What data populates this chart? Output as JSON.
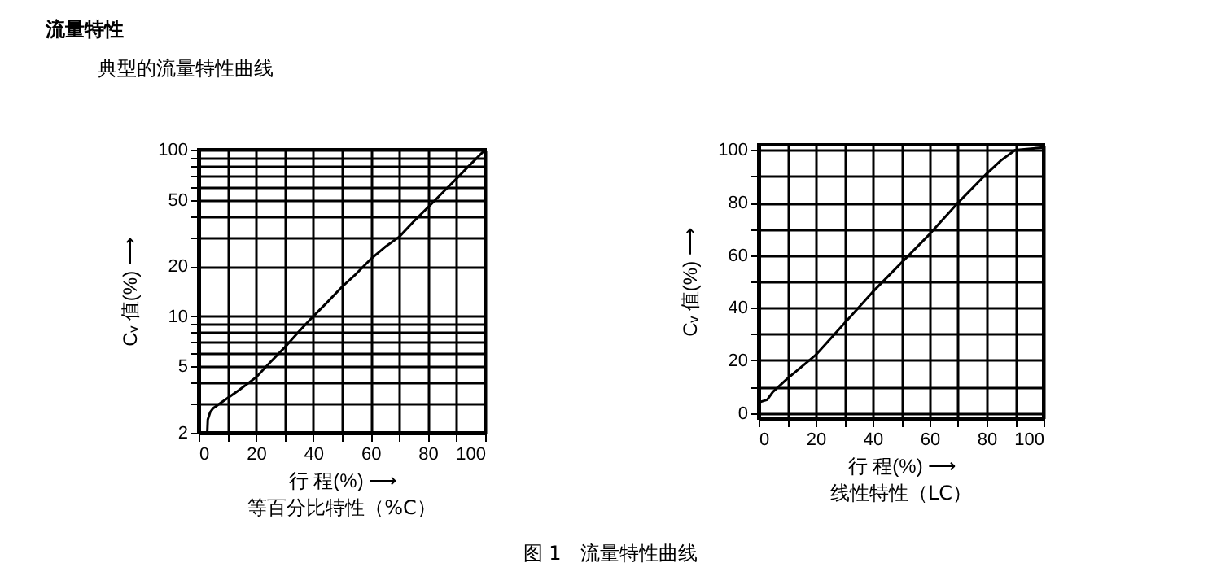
{
  "chart_data": [
    {
      "type": "line",
      "title": "等百分比特性（%C）",
      "xlabel": "行 程(%) ⟶",
      "ylabel": "Cᵥ 值(%) ⟶",
      "log": "y",
      "grid": true,
      "line_style": "solid",
      "annotations": [
        "流量特性",
        "典型的流量特性曲线"
      ],
      "xlim": [
        0,
        100
      ],
      "ylim": [
        2,
        100
      ],
      "xticks": [
        0,
        {
          "value": 10,
          "label": null
        },
        20,
        {
          "value": 30,
          "label": null
        },
        40,
        {
          "value": 50,
          "label": null
        },
        60,
        {
          "value": 70,
          "label": null
        },
        80,
        {
          "value": 90,
          "label": null
        },
        100
      ],
      "yticks": [
        2,
        {
          "value": 3,
          "label": null
        },
        {
          "value": 4,
          "label": null
        },
        5,
        {
          "value": 6,
          "label": null
        },
        {
          "value": 7,
          "label": null
        },
        {
          "value": 8,
          "label": null
        },
        {
          "value": 9,
          "label": null
        },
        10,
        20,
        {
          "value": 30,
          "label": null
        },
        {
          "value": 40,
          "label": null
        },
        50,
        {
          "value": 60,
          "label": null
        },
        {
          "value": 70,
          "label": null
        },
        {
          "value": 80,
          "label": null
        },
        {
          "value": 90,
          "label": null
        },
        100
      ],
      "series": [
        {
          "color": "#000000",
          "x": [
            3,
            3.2,
            4,
            5,
            8,
            14,
            20,
            25,
            30,
            35,
            40,
            45,
            50,
            55,
            60,
            65,
            70,
            75,
            80,
            85,
            90,
            95,
            100
          ],
          "values": [
            2,
            2.4,
            2.65,
            2.8,
            3.05,
            3.6,
            4.3,
            5.3,
            6.5,
            8.1,
            10,
            12.2,
            15,
            18,
            22,
            26,
            30,
            37,
            45,
            55,
            67,
            82,
            100
          ]
        }
      ]
    },
    {
      "type": "line",
      "title": "线性特性（LC）",
      "xlabel": "行 程(%) ⟶",
      "ylabel": "Cᵥ 值(%) ⟶",
      "grid": true,
      "line_style": "solid",
      "annotations": [
        "图 1　流量特性曲线"
      ],
      "xlim": [
        0,
        100
      ],
      "ylim": [
        -2,
        102
      ],
      "xticks": [
        0,
        {
          "value": 10,
          "label": null
        },
        20,
        {
          "value": 30,
          "label": null
        },
        40,
        {
          "value": 50,
          "label": null
        },
        60,
        {
          "value": 70,
          "label": null
        },
        80,
        {
          "value": 90,
          "label": null
        },
        100
      ],
      "yticks": [
        0,
        {
          "value": 10,
          "label": null
        },
        20,
        {
          "value": 30,
          "label": null
        },
        40,
        {
          "value": 50,
          "label": null
        },
        60,
        {
          "value": 70,
          "label": null
        },
        80,
        {
          "value": 90,
          "label": null
        },
        100
      ],
      "series": [
        {
          "color": "#000000",
          "x": [
            0,
            3,
            5,
            10,
            20,
            30,
            40,
            50,
            60,
            70,
            80,
            85,
            90,
            100
          ],
          "values": [
            4,
            5,
            8,
            13,
            22,
            34,
            46,
            57,
            68,
            80,
            91,
            96,
            100,
            101
          ]
        }
      ]
    }
  ]
}
